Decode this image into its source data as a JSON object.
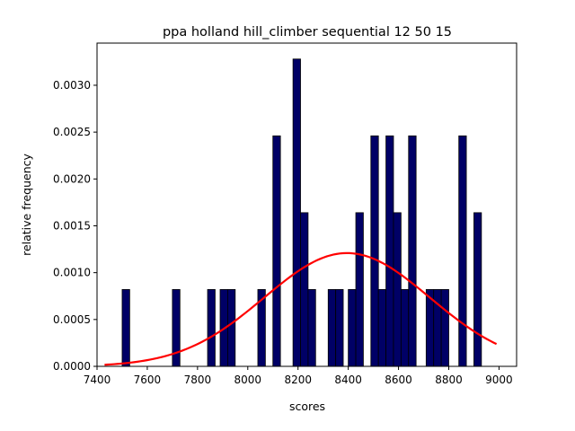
{
  "chart_data": {
    "type": "bar",
    "title": "ppa holland hill_climber sequential 12 50 15",
    "xlabel": "scores",
    "ylabel": "relative frequency",
    "xlim": [
      7400,
      9070
    ],
    "ylim": [
      0,
      0.00345
    ],
    "x_ticks": [
      7400,
      7600,
      7800,
      8000,
      8200,
      8400,
      8600,
      8800,
      9000
    ],
    "y_ticks": [
      0.0,
      0.0005,
      0.001,
      0.0015,
      0.002,
      0.0025,
      0.003
    ],
    "y_tick_labels": [
      "0.0000",
      "0.0005",
      "0.0010",
      "0.0015",
      "0.0020",
      "0.0025",
      "0.0030"
    ],
    "bin_width": 30,
    "bar_color": "#000066",
    "bar_edge_color": "#000000",
    "bars": [
      {
        "x": 7500,
        "value": 0.00082
      },
      {
        "x": 7700,
        "value": 0.00082
      },
      {
        "x": 7840,
        "value": 0.00082
      },
      {
        "x": 7890,
        "value": 0.00082
      },
      {
        "x": 7920,
        "value": 0.00082
      },
      {
        "x": 8040,
        "value": 0.00082
      },
      {
        "x": 8100,
        "value": 0.00246
      },
      {
        "x": 8180,
        "value": 0.00328
      },
      {
        "x": 8210,
        "value": 0.00164
      },
      {
        "x": 8240,
        "value": 0.00082
      },
      {
        "x": 8320,
        "value": 0.00082
      },
      {
        "x": 8350,
        "value": 0.00082
      },
      {
        "x": 8400,
        "value": 0.00082
      },
      {
        "x": 8430,
        "value": 0.00164
      },
      {
        "x": 8490,
        "value": 0.00246
      },
      {
        "x": 8520,
        "value": 0.00082
      },
      {
        "x": 8550,
        "value": 0.00246
      },
      {
        "x": 8580,
        "value": 0.00164
      },
      {
        "x": 8610,
        "value": 0.00082
      },
      {
        "x": 8640,
        "value": 0.00246
      },
      {
        "x": 8710,
        "value": 0.00082
      },
      {
        "x": 8740,
        "value": 0.00082
      },
      {
        "x": 8770,
        "value": 0.00082
      },
      {
        "x": 8840,
        "value": 0.00246
      },
      {
        "x": 8900,
        "value": 0.00164
      }
    ],
    "fit_curve": {
      "type": "normal",
      "mean": 8395,
      "std": 330,
      "x_range": [
        7430,
        8990
      ],
      "color": "#ff0000"
    }
  }
}
